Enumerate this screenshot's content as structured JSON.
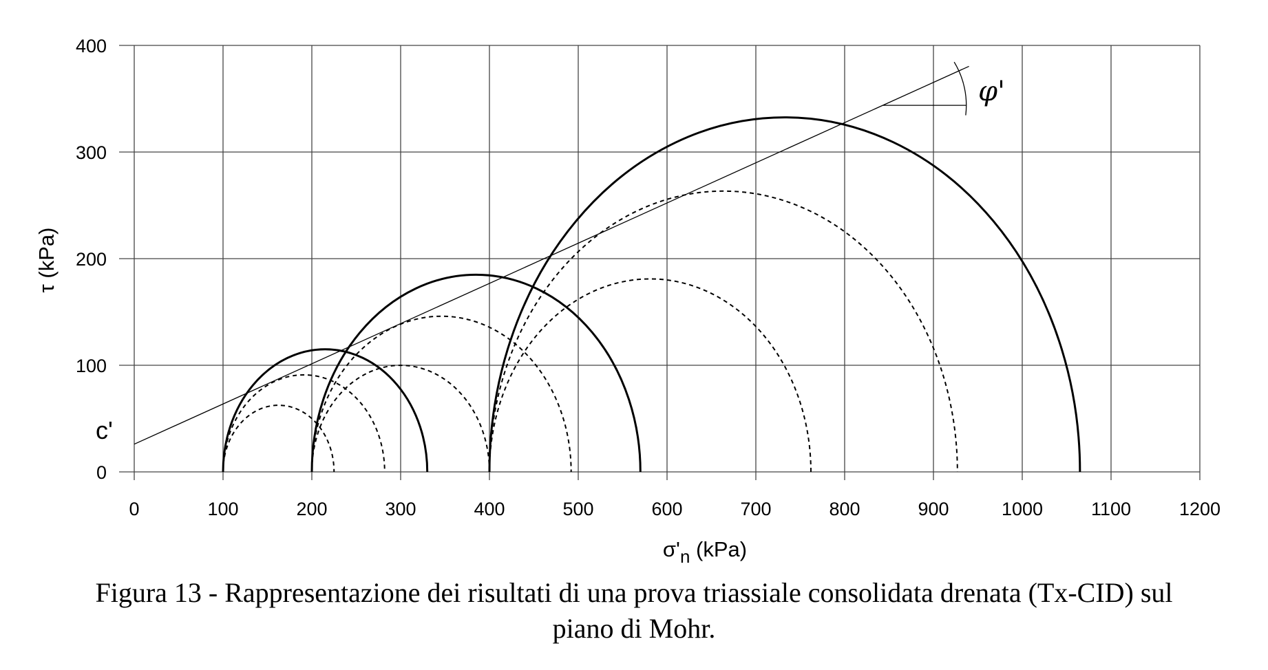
{
  "caption": {
    "line1": "Figura 13 - Rappresentazione dei risultati di una prova triassiale consolidata drenata (Tx-CID) sul",
    "line2": "piano di Mohr."
  },
  "chart_data": {
    "type": "line",
    "title": "",
    "xlabel_main": "σ'",
    "xlabel_sub": "n",
    "xlabel_unit": " (kPa)",
    "ylabel": "τ (kPa)",
    "xlim": [
      0,
      1200
    ],
    "ylim": [
      0,
      400
    ],
    "xticks": [
      "0",
      "100",
      "200",
      "300",
      "400",
      "500",
      "600",
      "700",
      "800",
      "900",
      "1000",
      "1100",
      "1200"
    ],
    "yticks": [
      "0",
      "100",
      "200",
      "300",
      "400"
    ],
    "grid": true,
    "failure_envelope": {
      "c_prime": 26,
      "slope": 0.377,
      "x_range": [
        0,
        940
      ]
    },
    "annotations": {
      "cohesion": "c'",
      "friction_angle": "φ'"
    },
    "circles_at_failure": [
      {
        "sigma3": 100,
        "sigma1": 330
      },
      {
        "sigma3": 200,
        "sigma1": 570
      },
      {
        "sigma3": 400,
        "sigma1": 1065
      }
    ],
    "intermediate_circles": [
      {
        "sigma3": 100,
        "sigma1": 225
      },
      {
        "sigma3": 100,
        "sigma1": 282
      },
      {
        "sigma3": 200,
        "sigma1": 492
      },
      {
        "sigma3": 200,
        "sigma1": 400
      },
      {
        "sigma3": 400,
        "sigma1": 762
      },
      {
        "sigma3": 400,
        "sigma1": 927
      }
    ]
  }
}
